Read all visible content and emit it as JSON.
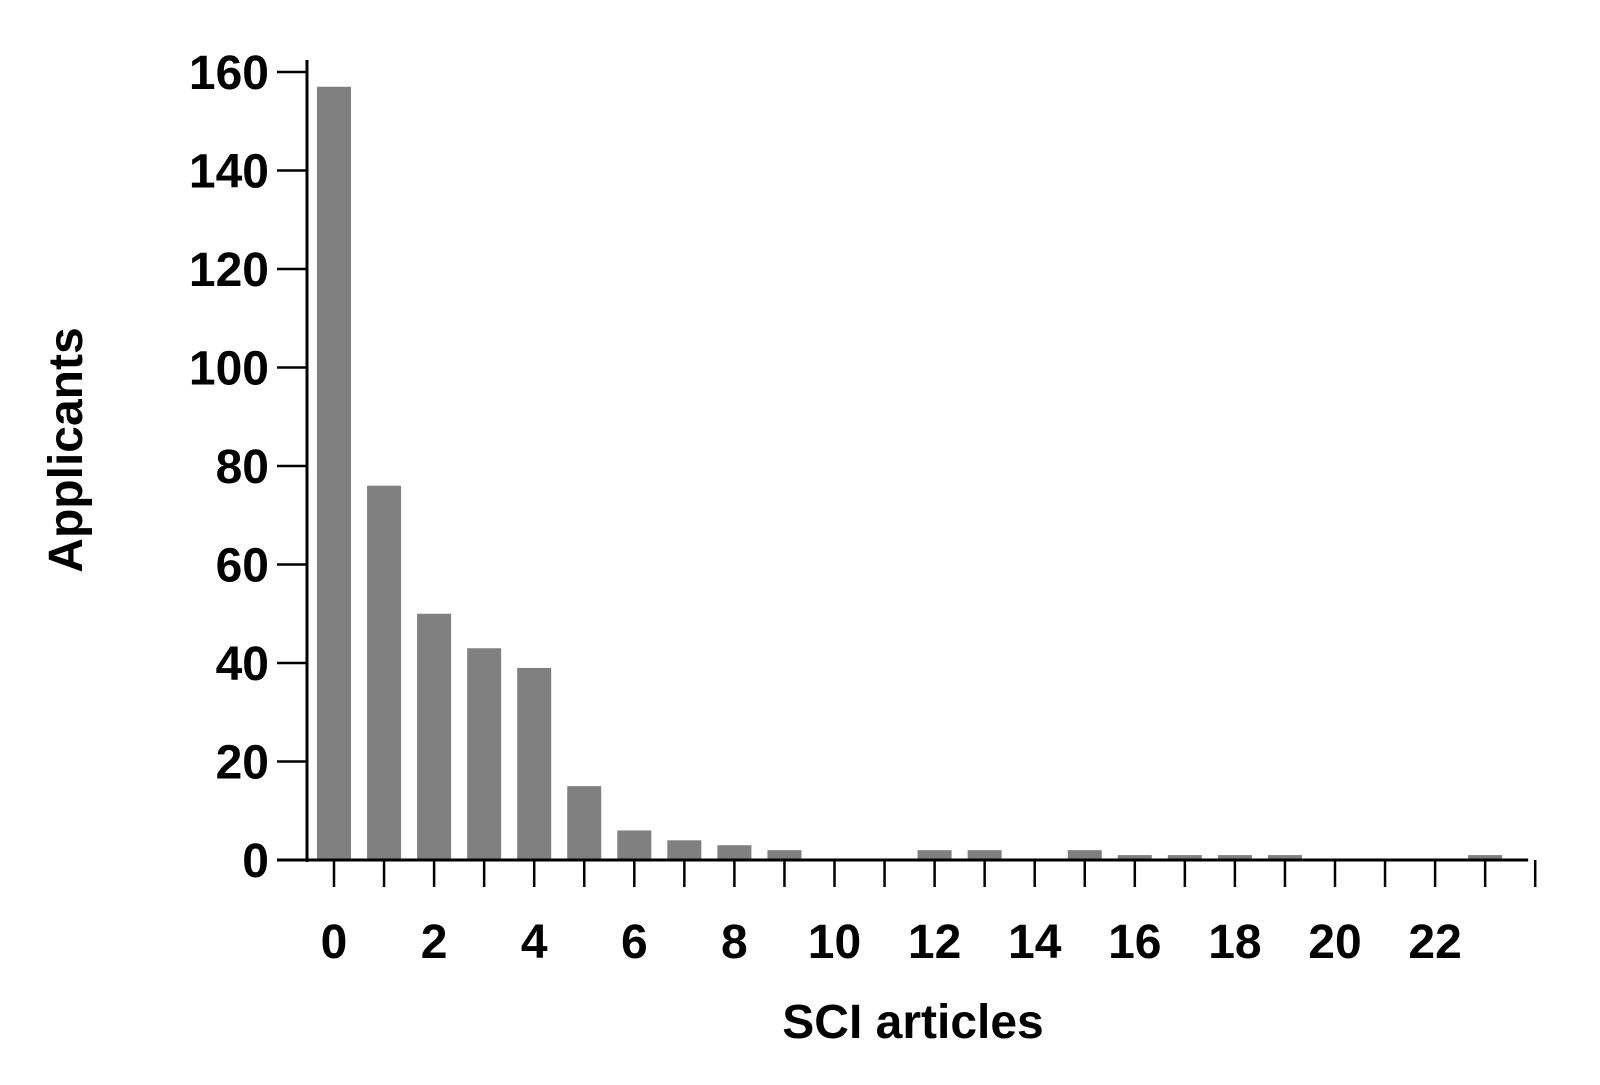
{
  "chart_data": {
    "type": "bar",
    "title": "",
    "xlabel": "SCI articles",
    "ylabel": "Applicants",
    "x": [
      0,
      1,
      2,
      3,
      4,
      5,
      6,
      7,
      8,
      9,
      10,
      11,
      12,
      13,
      14,
      15,
      16,
      17,
      18,
      19,
      20,
      21,
      22,
      23
    ],
    "values": [
      157,
      76,
      50,
      43,
      39,
      15,
      6,
      4,
      3,
      2,
      0,
      0,
      2,
      2,
      0,
      2,
      1,
      1,
      1,
      1,
      0,
      0,
      0,
      1
    ],
    "ylim": [
      0,
      160
    ],
    "yticks": [
      0,
      20,
      40,
      60,
      80,
      100,
      120,
      140,
      160
    ],
    "xtick_labels": [
      0,
      2,
      4,
      6,
      8,
      10,
      12,
      14,
      16,
      18,
      20,
      22
    ],
    "grid": false,
    "bar_color": "#808080",
    "axis_color": "#000000"
  }
}
